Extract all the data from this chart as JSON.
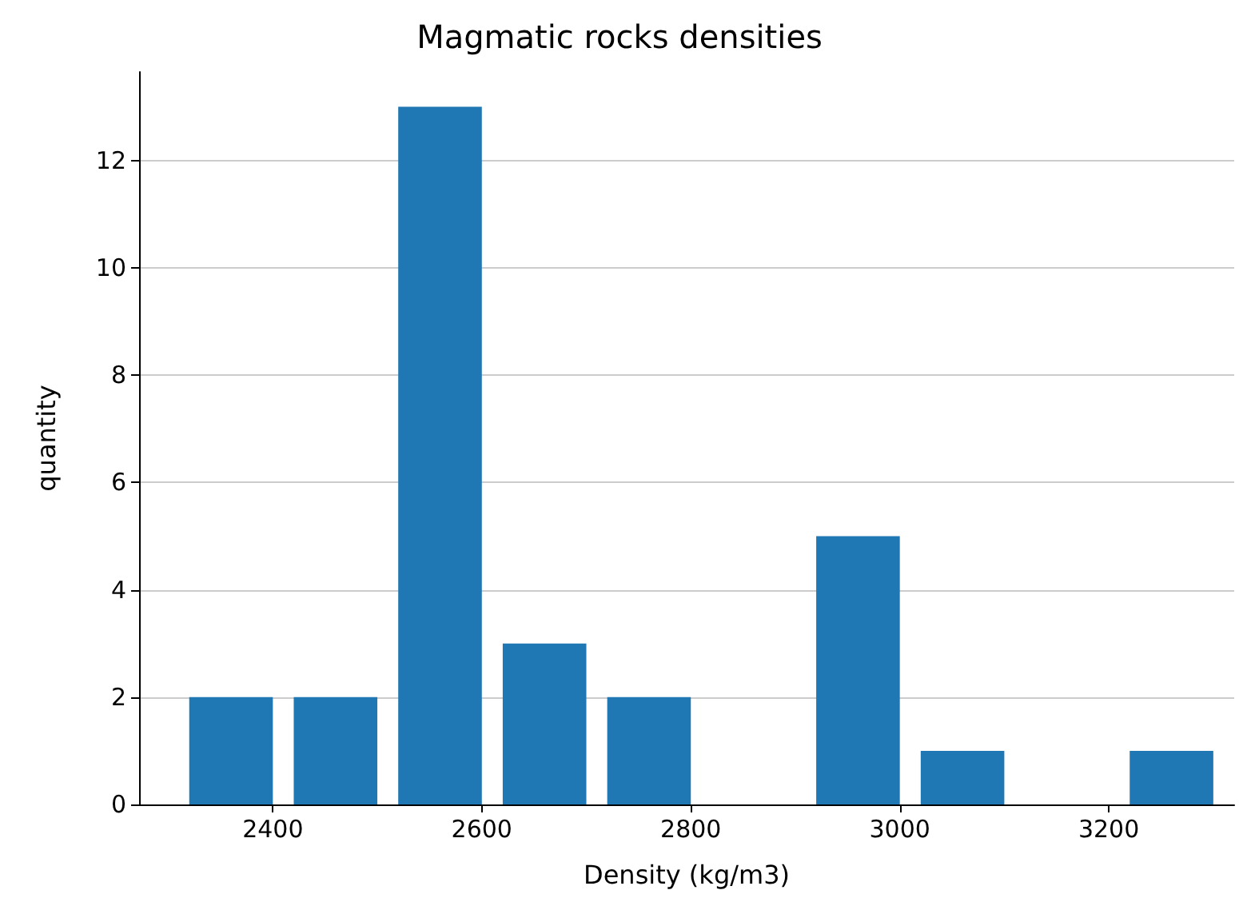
{
  "chart_data": {
    "type": "histogram",
    "title": "Magmatic rocks densities",
    "xlabel": "Density (kg/m3)",
    "ylabel": "quantity",
    "bins": [
      2310,
      2410,
      2510,
      2610,
      2710,
      2810,
      2910,
      3010,
      3110,
      3210,
      3310
    ],
    "values": [
      2,
      2,
      13,
      3,
      2,
      0,
      5,
      1,
      0,
      1
    ],
    "color": "#1f77b4",
    "xlim": [
      2272,
      3320
    ],
    "xticks": [
      2400,
      2600,
      2800,
      3000,
      3200
    ],
    "ylim": [
      0,
      13.65
    ],
    "yticks": [
      0,
      2,
      4,
      6,
      8,
      10,
      12
    ],
    "grid": "y"
  }
}
